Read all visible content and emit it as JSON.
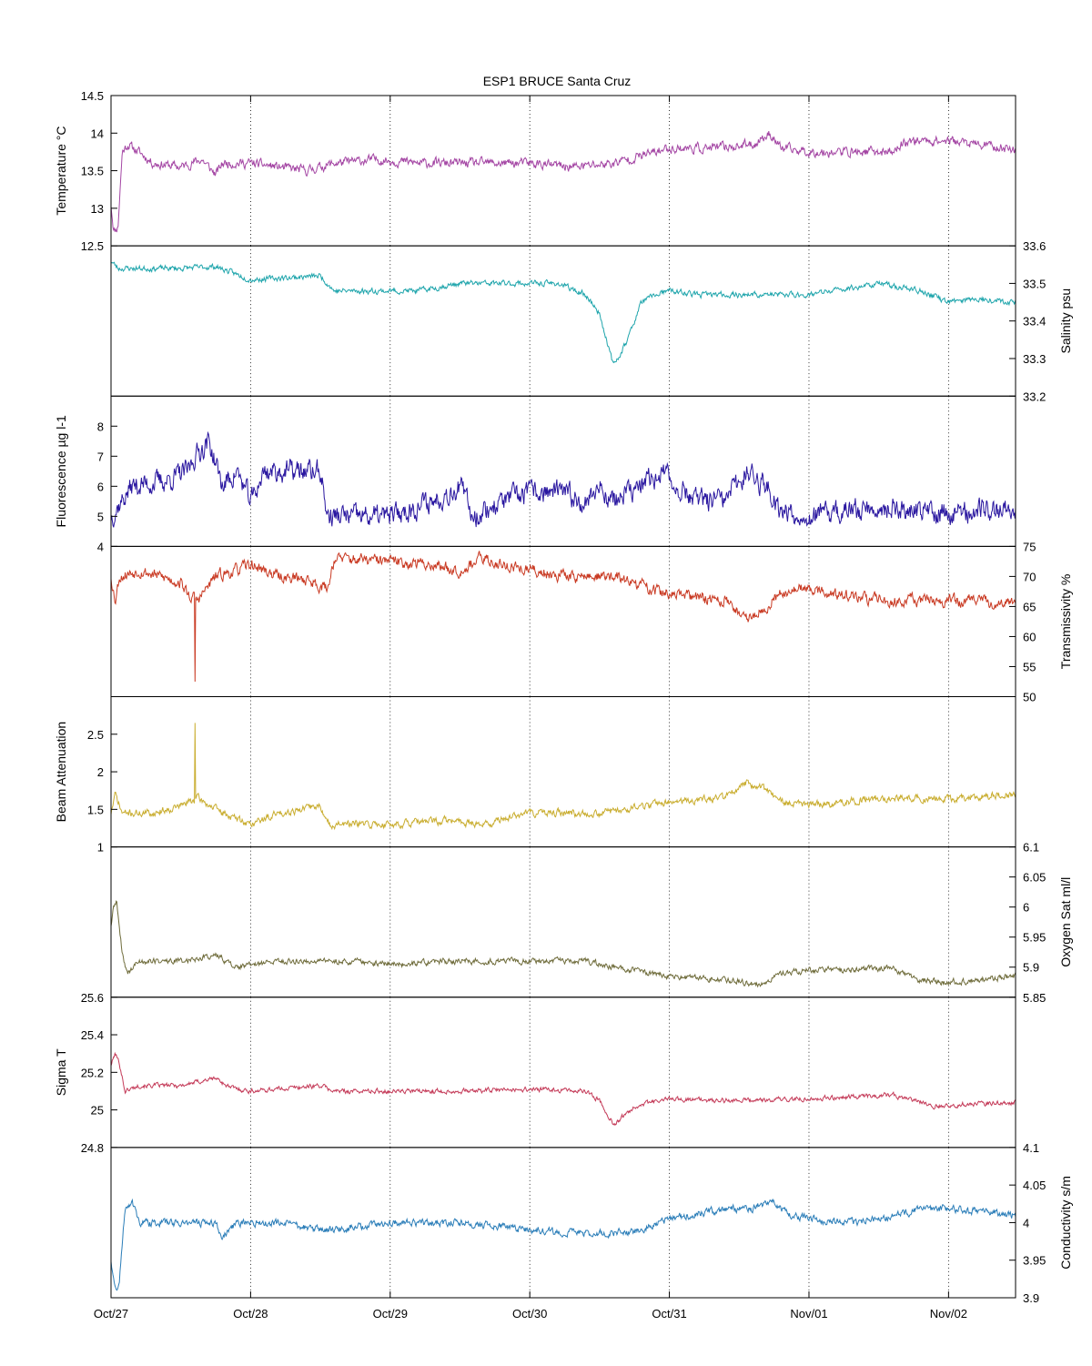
{
  "chart_data": {
    "type": "line",
    "title": "ESP1 BRUCE Santa Cruz",
    "x": {
      "ticks": [
        "Oct/27",
        "Oct/28",
        "Oct/29",
        "Oct/30",
        "Oct/31",
        "Nov/01",
        "Nov/02"
      ],
      "range_days": [
        0,
        6.48
      ],
      "grid": "vertical dotted"
    },
    "panels": [
      {
        "id": "temperature",
        "ylabel": "Temperature °C",
        "axis_side": "left",
        "ylim": [
          12.5,
          14.5
        ],
        "yticks": [
          "12.5",
          "13",
          "13.5",
          "14",
          "14.5"
        ],
        "color": "#a446a4",
        "seed": 11,
        "noise": 0.05,
        "keypoints": [
          [
            0,
            13.05
          ],
          [
            0.02,
            12.7
          ],
          [
            0.05,
            12.75
          ],
          [
            0.08,
            13.75
          ],
          [
            0.12,
            13.85
          ],
          [
            0.2,
            13.75
          ],
          [
            0.3,
            13.6
          ],
          [
            0.5,
            13.55
          ],
          [
            0.65,
            13.65
          ],
          [
            0.75,
            13.45
          ],
          [
            0.8,
            13.6
          ],
          [
            1.0,
            13.6
          ],
          [
            1.2,
            13.55
          ],
          [
            1.4,
            13.5
          ],
          [
            1.6,
            13.6
          ],
          [
            1.9,
            13.65
          ],
          [
            2.2,
            13.6
          ],
          [
            2.5,
            13.6
          ],
          [
            2.8,
            13.6
          ],
          [
            3.0,
            13.6
          ],
          [
            3.3,
            13.55
          ],
          [
            3.6,
            13.6
          ],
          [
            3.8,
            13.7
          ],
          [
            4.0,
            13.8
          ],
          [
            4.3,
            13.8
          ],
          [
            4.6,
            13.85
          ],
          [
            4.72,
            14.0
          ],
          [
            4.8,
            13.8
          ],
          [
            5.0,
            13.75
          ],
          [
            5.3,
            13.75
          ],
          [
            5.6,
            13.75
          ],
          [
            5.7,
            13.9
          ],
          [
            6.0,
            13.9
          ],
          [
            6.2,
            13.85
          ],
          [
            6.48,
            13.78
          ]
        ]
      },
      {
        "id": "salinity",
        "ylabel": "Salinity psu",
        "axis_side": "right",
        "ylim": [
          33.2,
          33.6
        ],
        "yticks": [
          "33.2",
          "33.3",
          "33.4",
          "33.5",
          "33.6"
        ],
        "color": "#1fa5ac",
        "seed": 23,
        "noise": 0.006,
        "keypoints": [
          [
            0,
            33.56
          ],
          [
            0.05,
            33.54
          ],
          [
            0.2,
            33.54
          ],
          [
            0.5,
            33.54
          ],
          [
            0.75,
            33.545
          ],
          [
            1.0,
            33.51
          ],
          [
            1.5,
            33.52
          ],
          [
            1.6,
            33.48
          ],
          [
            1.8,
            33.48
          ],
          [
            2.2,
            33.48
          ],
          [
            2.5,
            33.5
          ],
          [
            2.8,
            33.5
          ],
          [
            3.2,
            33.5
          ],
          [
            3.4,
            33.47
          ],
          [
            3.5,
            33.42
          ],
          [
            3.55,
            33.35
          ],
          [
            3.6,
            33.28
          ],
          [
            3.7,
            33.35
          ],
          [
            3.8,
            33.45
          ],
          [
            3.9,
            33.47
          ],
          [
            4.0,
            33.48
          ],
          [
            4.2,
            33.47
          ],
          [
            4.5,
            33.47
          ],
          [
            5.0,
            33.47
          ],
          [
            5.5,
            33.5
          ],
          [
            5.8,
            33.48
          ],
          [
            6.0,
            33.45
          ],
          [
            6.2,
            33.46
          ],
          [
            6.48,
            33.45
          ]
        ]
      },
      {
        "id": "fluorescence",
        "ylabel": "Fluorescence µg l-1",
        "axis_side": "left",
        "ylim": [
          4,
          9
        ],
        "yticks": [
          "4",
          "5",
          "6",
          "7",
          "8"
        ],
        "color": "#2a17a0",
        "seed": 37,
        "noise": 0.3,
        "keypoints": [
          [
            0,
            5.0
          ],
          [
            0.15,
            6.0
          ],
          [
            0.4,
            6.2
          ],
          [
            0.55,
            6.5
          ],
          [
            0.6,
            7.0
          ],
          [
            0.7,
            7.5
          ],
          [
            0.8,
            6.0
          ],
          [
            0.9,
            6.5
          ],
          [
            1.0,
            5.5
          ],
          [
            1.1,
            6.5
          ],
          [
            1.4,
            6.5
          ],
          [
            1.5,
            6.5
          ],
          [
            1.55,
            5.0
          ],
          [
            1.7,
            5.0
          ],
          [
            2.0,
            5.0
          ],
          [
            2.3,
            5.5
          ],
          [
            2.5,
            6.0
          ],
          [
            2.6,
            5.0
          ],
          [
            2.8,
            5.5
          ],
          [
            3.0,
            5.8
          ],
          [
            3.2,
            5.8
          ],
          [
            3.4,
            5.5
          ],
          [
            3.5,
            6.0
          ],
          [
            3.6,
            5.5
          ],
          [
            3.8,
            6.0
          ],
          [
            3.95,
            6.5
          ],
          [
            4.0,
            6.2
          ],
          [
            4.2,
            5.5
          ],
          [
            4.4,
            5.5
          ],
          [
            4.55,
            6.5
          ],
          [
            4.7,
            6.0
          ],
          [
            4.8,
            5.2
          ],
          [
            5.0,
            5.0
          ],
          [
            5.5,
            5.3
          ],
          [
            6.0,
            5.1
          ],
          [
            6.48,
            5.3
          ]
        ]
      },
      {
        "id": "transmissivity",
        "ylabel": "Transmissivity %",
        "axis_side": "right",
        "ylim": [
          50,
          75
        ],
        "yticks": [
          "50",
          "55",
          "60",
          "65",
          "70",
          "75"
        ],
        "color": "#c93a23",
        "seed": 53,
        "noise": 0.8,
        "keypoints": [
          [
            0,
            70
          ],
          [
            0.03,
            66
          ],
          [
            0.06,
            70
          ],
          [
            0.2,
            71
          ],
          [
            0.5,
            69
          ],
          [
            0.55,
            67
          ],
          [
            0.62,
            66
          ],
          [
            0.75,
            70
          ],
          [
            0.9,
            71
          ],
          [
            1.0,
            72
          ],
          [
            1.2,
            70
          ],
          [
            1.4,
            69.5
          ],
          [
            1.55,
            68
          ],
          [
            1.6,
            73
          ],
          [
            2.0,
            72.5
          ],
          [
            2.3,
            72
          ],
          [
            2.5,
            71
          ],
          [
            2.65,
            73
          ],
          [
            2.8,
            72
          ],
          [
            3.0,
            71
          ],
          [
            3.3,
            70
          ],
          [
            3.6,
            70
          ],
          [
            3.8,
            68.5
          ],
          [
            4.0,
            67
          ],
          [
            4.4,
            66
          ],
          [
            4.55,
            63
          ],
          [
            4.7,
            65
          ],
          [
            4.8,
            67.5
          ],
          [
            5.0,
            68
          ],
          [
            5.3,
            66.5
          ],
          [
            5.6,
            66
          ],
          [
            6.0,
            66
          ],
          [
            6.48,
            65.5
          ]
        ],
        "spikes": [
          [
            0.6,
            52.5
          ]
        ]
      },
      {
        "id": "beam_attenuation",
        "ylabel": "Beam Attenuation",
        "axis_side": "left",
        "ylim": [
          1,
          3
        ],
        "yticks": [
          "1",
          "1.5",
          "2",
          "2.5"
        ],
        "color": "#c9ad2f",
        "seed": 71,
        "noise": 0.04,
        "keypoints": [
          [
            0,
            1.45
          ],
          [
            0.03,
            1.7
          ],
          [
            0.08,
            1.45
          ],
          [
            0.3,
            1.45
          ],
          [
            0.5,
            1.55
          ],
          [
            0.62,
            1.65
          ],
          [
            0.8,
            1.45
          ],
          [
            1.0,
            1.3
          ],
          [
            1.2,
            1.45
          ],
          [
            1.5,
            1.55
          ],
          [
            1.55,
            1.3
          ],
          [
            2.0,
            1.3
          ],
          [
            2.4,
            1.35
          ],
          [
            2.7,
            1.3
          ],
          [
            2.85,
            1.4
          ],
          [
            3.0,
            1.45
          ],
          [
            3.5,
            1.45
          ],
          [
            4.0,
            1.6
          ],
          [
            4.4,
            1.65
          ],
          [
            4.55,
            1.85
          ],
          [
            4.7,
            1.75
          ],
          [
            4.8,
            1.6
          ],
          [
            5.0,
            1.55
          ],
          [
            5.5,
            1.65
          ],
          [
            6.0,
            1.65
          ],
          [
            6.48,
            1.7
          ]
        ],
        "spikes": [
          [
            0.6,
            2.65
          ]
        ]
      },
      {
        "id": "oxygen",
        "ylabel": "Oxygen Sat ml/l",
        "axis_side": "right",
        "ylim": [
          5.85,
          6.1
        ],
        "yticks": [
          "5.85",
          "5.9",
          "5.95",
          "6",
          "6.05",
          "6.1"
        ],
        "color": "#6f6c3b",
        "seed": 89,
        "noise": 0.004,
        "keypoints": [
          [
            0,
            5.97
          ],
          [
            0.02,
            6.0
          ],
          [
            0.04,
            6.01
          ],
          [
            0.08,
            5.92
          ],
          [
            0.12,
            5.89
          ],
          [
            0.2,
            5.91
          ],
          [
            0.5,
            5.91
          ],
          [
            0.75,
            5.92
          ],
          [
            0.9,
            5.9
          ],
          [
            1.2,
            5.91
          ],
          [
            1.5,
            5.91
          ],
          [
            1.7,
            5.91
          ],
          [
            2.0,
            5.905
          ],
          [
            2.5,
            5.91
          ],
          [
            3.0,
            5.91
          ],
          [
            3.4,
            5.91
          ],
          [
            3.6,
            5.9
          ],
          [
            4.0,
            5.885
          ],
          [
            4.4,
            5.88
          ],
          [
            4.65,
            5.87
          ],
          [
            4.8,
            5.89
          ],
          [
            5.0,
            5.895
          ],
          [
            5.3,
            5.895
          ],
          [
            5.6,
            5.9
          ],
          [
            5.75,
            5.88
          ],
          [
            6.0,
            5.875
          ],
          [
            6.48,
            5.885
          ]
        ]
      },
      {
        "id": "sigma_t",
        "ylabel": "Sigma T",
        "axis_side": "left",
        "ylim": [
          24.8,
          25.6
        ],
        "yticks": [
          "24.8",
          "25",
          "25.2",
          "25.4",
          "25.6"
        ],
        "color": "#c43a58",
        "seed": 101,
        "noise": 0.01,
        "keypoints": [
          [
            0,
            25.24
          ],
          [
            0.03,
            25.3
          ],
          [
            0.06,
            25.25
          ],
          [
            0.1,
            25.1
          ],
          [
            0.2,
            25.13
          ],
          [
            0.5,
            25.13
          ],
          [
            0.75,
            25.17
          ],
          [
            0.85,
            25.12
          ],
          [
            1.0,
            25.1
          ],
          [
            1.5,
            25.13
          ],
          [
            1.6,
            25.1
          ],
          [
            2.0,
            25.1
          ],
          [
            2.5,
            25.1
          ],
          [
            3.0,
            25.11
          ],
          [
            3.4,
            25.1
          ],
          [
            3.5,
            25.05
          ],
          [
            3.6,
            24.92
          ],
          [
            3.75,
            25.02
          ],
          [
            4.0,
            25.06
          ],
          [
            4.3,
            25.05
          ],
          [
            4.6,
            25.05
          ],
          [
            5.0,
            25.06
          ],
          [
            5.3,
            25.07
          ],
          [
            5.6,
            25.08
          ],
          [
            5.9,
            25.02
          ],
          [
            6.1,
            25.03
          ],
          [
            6.48,
            25.04
          ]
        ]
      },
      {
        "id": "conductivity",
        "ylabel": "Conductivity s/m",
        "axis_side": "right",
        "ylim": [
          3.9,
          4.1
        ],
        "yticks": [
          "3.9",
          "3.95",
          "4",
          "4.05",
          "4.1"
        ],
        "color": "#2a7db8",
        "seed": 131,
        "noise": 0.004,
        "keypoints": [
          [
            0,
            3.95
          ],
          [
            0.03,
            3.91
          ],
          [
            0.06,
            3.92
          ],
          [
            0.1,
            4.02
          ],
          [
            0.15,
            4.03
          ],
          [
            0.2,
            4.0
          ],
          [
            0.5,
            4.0
          ],
          [
            0.75,
            4.0
          ],
          [
            0.8,
            3.98
          ],
          [
            0.9,
            4.0
          ],
          [
            1.2,
            4.0
          ],
          [
            1.5,
            3.99
          ],
          [
            1.6,
            3.99
          ],
          [
            2.0,
            4.0
          ],
          [
            2.5,
            4.0
          ],
          [
            3.0,
            3.99
          ],
          [
            3.5,
            3.985
          ],
          [
            3.8,
            3.99
          ],
          [
            4.0,
            4.005
          ],
          [
            4.3,
            4.015
          ],
          [
            4.6,
            4.02
          ],
          [
            4.75,
            4.03
          ],
          [
            4.85,
            4.01
          ],
          [
            5.0,
            4.005
          ],
          [
            5.3,
            4.0
          ],
          [
            5.5,
            4.005
          ],
          [
            5.75,
            4.015
          ],
          [
            6.0,
            4.02
          ],
          [
            6.48,
            4.01
          ]
        ]
      }
    ]
  }
}
